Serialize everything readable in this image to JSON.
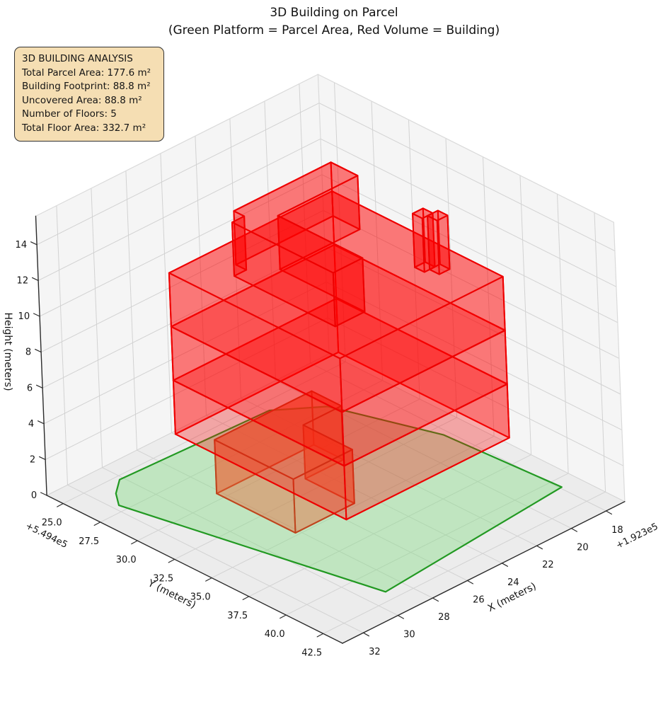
{
  "info_box": {
    "lines": [
      "3D BUILDING ANALYSIS",
      "Total Parcel Area: 177.6 m²",
      "Building Footprint: 88.8 m²",
      "Uncovered Area: 88.8 m²",
      "Number of Floors: 5",
      "Total Floor Area: 332.7 m²"
    ],
    "stats": {
      "total_parcel_area_m2": 177.6,
      "building_footprint_m2": 88.8,
      "uncovered_area_m2": 88.8,
      "number_of_floors": 5,
      "total_floor_area_m2": 332.7
    }
  },
  "chart_data": {
    "type": "3d-building-extrusion",
    "title_lines": [
      "3D Building on Parcel",
      "(Green Platform = Parcel Area, Red Volume = Building)"
    ],
    "legend_meaning": {
      "green_platform": "Parcel Area",
      "red_volume": "Building"
    },
    "axes": {
      "x": {
        "label": "X (meters)",
        "offset_text": "+1.923e5",
        "ticks": [
          18,
          20,
          22,
          24,
          26,
          28,
          30,
          32
        ],
        "tick_labels": [
          "18",
          "20",
          "22",
          "24",
          "26",
          "28",
          "30",
          "32"
        ],
        "lim": [
          16.92,
          33.2
        ]
      },
      "y": {
        "label": "Y (meters)",
        "offset_text": "+5.494e5",
        "ticks": [
          25,
          27.5,
          30,
          32.5,
          35,
          37.5,
          40,
          42.5
        ],
        "tick_labels": [
          "25.0",
          "27.5",
          "30.0",
          "32.5",
          "35.0",
          "37.5",
          "40.0",
          "42.5"
        ],
        "lim": [
          23.9,
          43.8
        ]
      },
      "z": {
        "label": "Height (meters)",
        "offset_text": "",
        "ticks": [
          0,
          2,
          4,
          6,
          8,
          10,
          12,
          14
        ],
        "tick_labels": [
          "0",
          "2",
          "4",
          "6",
          "8",
          "10",
          "12",
          "14"
        ],
        "lim": [
          0,
          15.6
        ]
      }
    },
    "parcel": {
      "outline_xy": [
        [
          20.0,
          27.4
        ],
        [
          21.9,
          25.7
        ],
        [
          30.2,
          25.3
        ],
        [
          31.1,
          26.1
        ],
        [
          31.7,
          27.0
        ],
        [
          29.0,
          41.8
        ],
        [
          17.9,
          40.7
        ],
        [
          18.3,
          33.2
        ]
      ]
    },
    "building": {
      "floor_height_m": 3,
      "num_floors": 5,
      "blocks": [
        {
          "name": "floor-1",
          "z": [
            0,
            3
          ],
          "style": "ground",
          "footprint": [
            [
              22.6,
              29.5
            ],
            [
              28.2,
              29.5
            ],
            [
              28.2,
              34.8
            ],
            [
              24.8,
              34.8
            ],
            [
              24.8,
              31.5
            ],
            [
              22.6,
              31.5
            ]
          ]
        },
        {
          "name": "floor-2",
          "z": [
            3,
            6
          ],
          "style": "upper",
          "footprint": [
            [
              19.6,
              27.8
            ],
            [
              29.0,
              27.8
            ],
            [
              29.0,
              39.3
            ],
            [
              19.6,
              39.3
            ]
          ]
        },
        {
          "name": "floor-3",
          "z": [
            6,
            9
          ],
          "style": "upper",
          "footprint": [
            [
              19.6,
              27.8
            ],
            [
              29.0,
              27.8
            ],
            [
              29.0,
              39.3
            ],
            [
              19.6,
              39.3
            ]
          ]
        },
        {
          "name": "floor-4",
          "z": [
            9,
            12
          ],
          "style": "upper",
          "footprint": [
            [
              19.6,
              27.8
            ],
            [
              29.0,
              27.8
            ],
            [
              29.0,
              39.3
            ],
            [
              19.6,
              39.3
            ]
          ]
        },
        {
          "name": "roof-fin-a",
          "z": [
            12,
            15
          ],
          "style": "upper",
          "footprint": [
            [
              21.0,
              35.7
            ],
            [
              21.6,
              35.7
            ],
            [
              21.6,
              36.35
            ],
            [
              21.0,
              36.35
            ]
          ]
        },
        {
          "name": "roof-fin-b",
          "z": [
            12,
            15
          ],
          "style": "upper",
          "footprint": [
            [
              20.7,
              36.35
            ],
            [
              21.3,
              36.35
            ],
            [
              21.3,
              37.0
            ],
            [
              20.7,
              37.0
            ]
          ]
        },
        {
          "name": "floor-5",
          "z": [
            12,
            15
          ],
          "style": "upper",
          "footprint": [
            [
              21.0,
              29.5
            ],
            [
              26.6,
              29.5
            ],
            [
              26.6,
              30.2
            ],
            [
              27.3,
              30.2
            ],
            [
              27.3,
              37.0
            ],
            [
              25.6,
              37.0
            ],
            [
              25.6,
              31.3
            ],
            [
              21.0,
              31.3
            ]
          ]
        }
      ]
    },
    "colors": {
      "parcel_fill": "rgba(130,220,130,0.42)",
      "parcel_edge": "#229922",
      "building_fill": "rgba(255,0,0,0.30)",
      "building_edge": "#ee0000",
      "ground_floor_fill": "rgba(235,95,50,0.42)",
      "ground_floor_edge": "rgba(190,68,30,0.95)",
      "pane_wall": "#f5f5f5",
      "pane_floor": "#ececec",
      "grid": "#d2d2d2",
      "pane_edge": "#dadada",
      "spine": "#2b2b2b",
      "text": "#141414",
      "info_box_bg": "#f5deb3",
      "info_box_border": "#333333"
    }
  }
}
